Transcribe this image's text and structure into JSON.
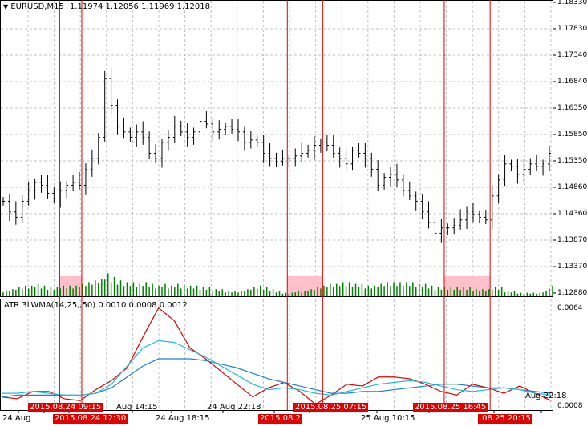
{
  "chart_header": {
    "symbol": "EURUSD,M15",
    "ohlc": "1.11974 1.12056 1.11969 1.12018",
    "menu_icon": "triangle-down-icon"
  },
  "indicator_header": {
    "label": "ATR 3LWMA(14,25,,50) 0.0010 0.0008 0.0012"
  },
  "colors": {
    "bars": "#000000",
    "volume": "#008000",
    "marker_line": "#e00000",
    "marker_zone": "#ffc0cb",
    "atr": "#e00000",
    "ma_fast": "#20c0d0",
    "ma_slow": "#2080d0",
    "grid": "#c0c0c0"
  },
  "price_axis": [
    "1.18330",
    "1.17830",
    "1.17340",
    "1.16840",
    "1.16350",
    "1.15850",
    "1.15350",
    "1.14860",
    "1.14360",
    "1.13870",
    "1.13370",
    "1.12880"
  ],
  "indicator_axis": [
    "0.0064",
    "0.0008"
  ],
  "time_axis": [
    {
      "text": "24 Aug",
      "highlight": false
    },
    {
      "text": "2015.08.24 09:15",
      "highlight": true
    },
    {
      "text": "2015.08.24 12:30",
      "highlight": true
    },
    {
      "text": "Aug 14:15",
      "highlight": false
    },
    {
      "text": "24 Aug 18:15",
      "highlight": false
    },
    {
      "text": "24 Aug 22:18",
      "highlight": false
    },
    {
      "text": "2015.08.2",
      "highlight": true
    },
    {
      "text": "2015.08.25 07:15",
      "highlight": true
    },
    {
      "text": "25 Aug 10:15",
      "highlight": false
    },
    {
      "text": "2015.08.25 16:45",
      "highlight": true
    },
    {
      "text": ".08.25 20:15",
      "highlight": true
    },
    {
      "text": "Aug 22:18",
      "highlight": false
    }
  ],
  "chart_data": {
    "type": "ohlc",
    "price_range": [
      1.1288,
      1.1833
    ],
    "closes": [
      1.146,
      1.144,
      1.143,
      1.146,
      1.148,
      1.1495,
      1.149,
      1.1475,
      1.1465,
      1.148,
      1.149,
      1.1495,
      1.149,
      1.152,
      1.154,
      1.158,
      1.169,
      1.164,
      1.16,
      1.159,
      1.158,
      1.159,
      1.158,
      1.155,
      1.154,
      1.157,
      1.158,
      1.16,
      1.159,
      1.158,
      1.159,
      1.161,
      1.1605,
      1.159,
      1.1595,
      1.16,
      1.1595,
      1.159,
      1.157,
      1.1575,
      1.157,
      1.155,
      1.154,
      1.1535,
      1.154,
      1.154,
      1.1545,
      1.155,
      1.1555,
      1.1565,
      1.157,
      1.1565,
      1.155,
      1.154,
      1.153,
      1.1555,
      1.155,
      1.154,
      1.152,
      1.149,
      1.1505,
      1.151,
      1.15,
      1.148,
      1.147,
      1.146,
      1.144,
      1.142,
      1.14,
      1.141,
      1.141,
      1.1415,
      1.1425,
      1.144,
      1.1435,
      1.143,
      1.1425,
      1.147,
      1.15,
      1.153,
      1.1525,
      1.151,
      1.152,
      1.153,
      1.1525,
      1.153,
      1.155
    ],
    "volume_relative": [
      0.3,
      0.4,
      0.5,
      0.6,
      0.6,
      0.7,
      0.6,
      0.5,
      0.5,
      0.6,
      0.6,
      0.6,
      0.7,
      0.8,
      0.9,
      1.0,
      1.3,
      1.1,
      0.9,
      0.8,
      0.8,
      0.7,
      0.8,
      0.7,
      0.6,
      0.7,
      0.6,
      0.7,
      0.6,
      0.6,
      0.6,
      0.5,
      0.5,
      0.4,
      0.4,
      0.3,
      0.3,
      0.3,
      0.4,
      0.5,
      0.6,
      0.5,
      0.4,
      0.3,
      0.2,
      0.2,
      0.3,
      0.3,
      0.4,
      0.5,
      0.6,
      0.7,
      0.7,
      0.8,
      0.8,
      0.7,
      0.7,
      0.6,
      0.6,
      0.7,
      0.8,
      0.8,
      0.8,
      0.8,
      0.8,
      0.7,
      0.7,
      0.6,
      0.5,
      0.5,
      0.5,
      0.5,
      0.5,
      0.5,
      0.4,
      0.4,
      0.4,
      0.5,
      0.5,
      0.3,
      0.3,
      0.2,
      0.2,
      0.2,
      0.2,
      0.3,
      0.6
    ],
    "marker_zones": [
      [
        0.108,
        0.148
      ],
      [
        0.52,
        0.584
      ],
      [
        0.804,
        0.887
      ]
    ],
    "indicator": {
      "range": [
        0.0008,
        0.0064
      ],
      "atr": [
        0.0013,
        0.0012,
        0.0016,
        0.0016,
        0.0012,
        0.0011,
        0.0017,
        0.0022,
        0.0029,
        0.0046,
        0.0062,
        0.0055,
        0.004,
        0.0034,
        0.0027,
        0.002,
        0.0013,
        0.0018,
        0.0021,
        0.0016,
        0.0009,
        0.0014,
        0.002,
        0.0019,
        0.0024,
        0.0024,
        0.0023,
        0.002,
        0.0016,
        0.0014,
        0.002,
        0.0018,
        0.0015,
        0.0019,
        0.0015,
        0.0011
      ],
      "ma_fast": [
        0.0015,
        0.0015,
        0.0016,
        0.0015,
        0.0014,
        0.0014,
        0.0015,
        0.002,
        0.003,
        0.004,
        0.0044,
        0.0043,
        0.0039,
        0.0035,
        0.003,
        0.0025,
        0.002,
        0.0017,
        0.0018,
        0.0017,
        0.0015,
        0.0014,
        0.0016,
        0.0018,
        0.002,
        0.0021,
        0.0022,
        0.0021,
        0.0019,
        0.0017,
        0.0016,
        0.0017,
        0.0018,
        0.0017,
        0.0015,
        0.0014
      ],
      "ma_slow": [
        0.0013,
        0.0014,
        0.0014,
        0.0014,
        0.0014,
        0.0014,
        0.0015,
        0.0018,
        0.0024,
        0.003,
        0.0034,
        0.0034,
        0.0034,
        0.0033,
        0.0031,
        0.0029,
        0.0026,
        0.0023,
        0.0021,
        0.0019,
        0.0017,
        0.0015,
        0.0015,
        0.0016,
        0.0016,
        0.0017,
        0.0018,
        0.0019,
        0.002,
        0.002,
        0.0019,
        0.0018,
        0.0018,
        0.0017,
        0.0016,
        0.0015
      ]
    }
  }
}
